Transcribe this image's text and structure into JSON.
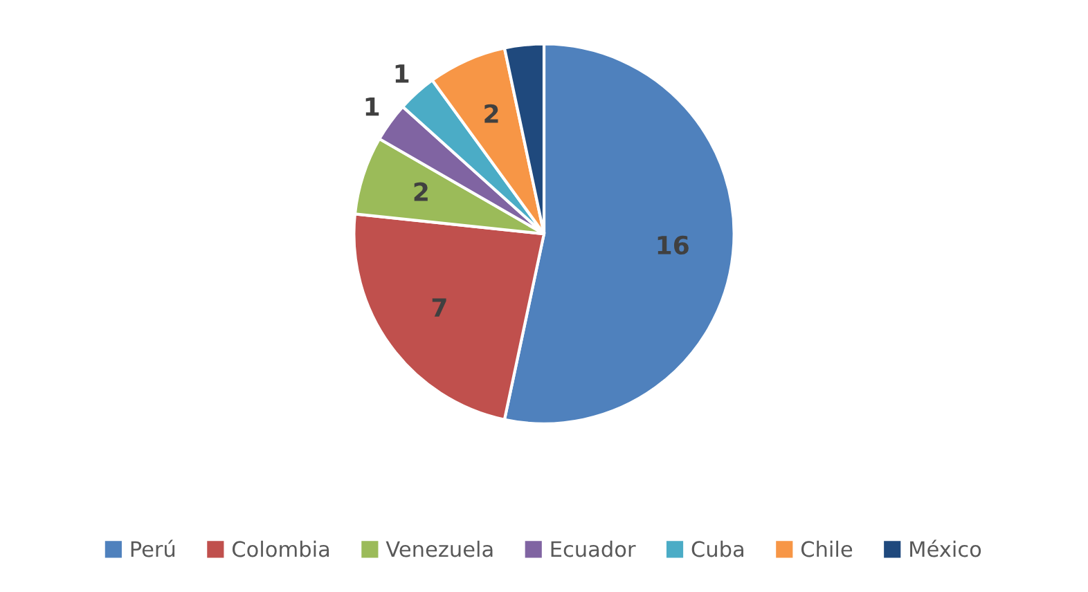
{
  "chart_data": {
    "type": "pie",
    "categories": [
      "Perú",
      "Colombia",
      "Venezuela",
      "Ecuador",
      "Cuba",
      "Chile",
      "México"
    ],
    "values": [
      16,
      7,
      2,
      1,
      1,
      2,
      1
    ],
    "colors": [
      "#4f81bd",
      "#c0504d",
      "#9bbb59",
      "#8064a2",
      "#4bacc6",
      "#f79646",
      "#1f497d"
    ],
    "value_labels": [
      "16",
      "7",
      "2",
      "1",
      "1",
      "2",
      null
    ],
    "legend": "bottom"
  }
}
